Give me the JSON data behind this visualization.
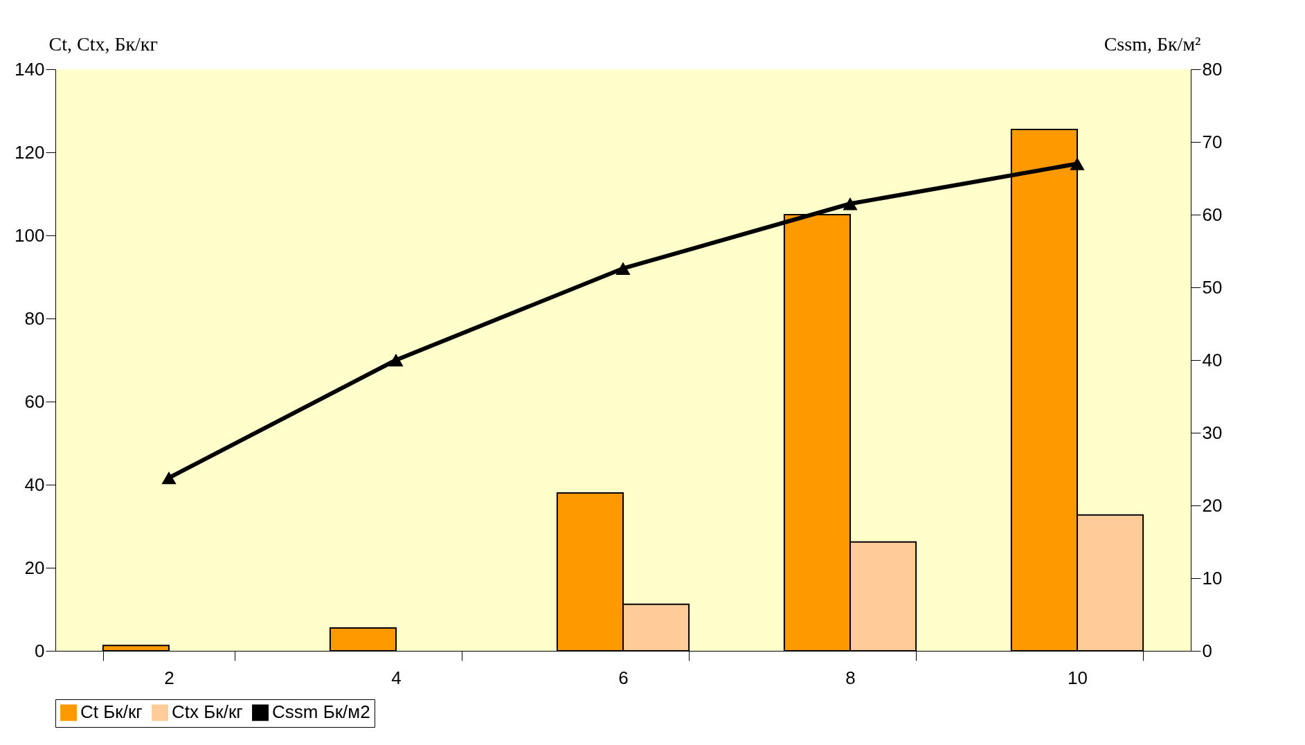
{
  "chart_data": {
    "type": "bar",
    "ylabel": "Ct, Ctx, Бк/кг",
    "y2label": "Cssm, Бк/м²",
    "categories": [
      "2",
      "4",
      "6",
      "8",
      "10"
    ],
    "series": [
      {
        "name": "Ct Бк/кг",
        "color": "#ff9900",
        "values": [
          1.3,
          5.5,
          38,
          105,
          125.5
        ]
      },
      {
        "name": "Ctx Бк/кг",
        "color": "#ffcc99",
        "values": [
          null,
          null,
          11.2,
          26.2,
          32.7
        ]
      },
      {
        "name": "Cssm Бк/м2",
        "color": "#000000",
        "type": "line",
        "axis": "y2",
        "marker": "triangle",
        "values": [
          23.8,
          40,
          52.6,
          61.5,
          67
        ]
      }
    ],
    "ylim": [
      0,
      140
    ],
    "yticks": [
      0,
      20,
      40,
      60,
      80,
      100,
      120,
      140
    ],
    "y2lim": [
      0,
      80
    ],
    "y2ticks": [
      0,
      10,
      20,
      30,
      40,
      50,
      60,
      70,
      80
    ],
    "grid": false,
    "legend": "bottom"
  }
}
